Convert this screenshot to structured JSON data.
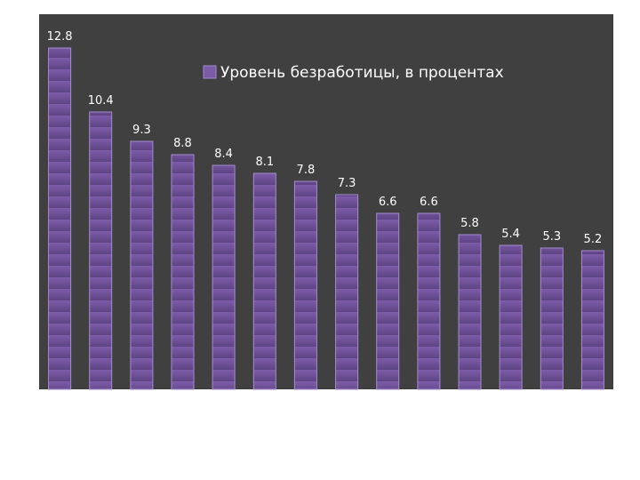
{
  "chart_data": {
    "type": "bar",
    "categories": [
      "",
      "",
      "",
      "",
      "",
      "",
      "",
      "",
      "",
      "",
      "",
      "",
      "",
      ""
    ],
    "series": [
      {
        "name": "Уровень безработицы, в процентах",
        "values": [
          12.8,
          10.4,
          9.3,
          8.8,
          8.4,
          8.1,
          7.8,
          7.3,
          6.6,
          6.6,
          5.8,
          5.4,
          5.3,
          5.2
        ]
      }
    ],
    "ylim": [
      0,
      13.5
    ],
    "grid": false,
    "legend_position": "top-right",
    "data_labels": [
      "12.8",
      "10.4",
      "9.3",
      "8.8",
      "8.4",
      "8.1",
      "7.8",
      "7.3",
      "6.6",
      "6.6",
      "5.8",
      "5.4",
      "5.3",
      "5.2"
    ],
    "colors": {
      "plot_background": "#404040",
      "bar_fill": "#7b5aa6",
      "bar_stroke": "#a58bcf",
      "label_color": "#ffffff"
    }
  }
}
